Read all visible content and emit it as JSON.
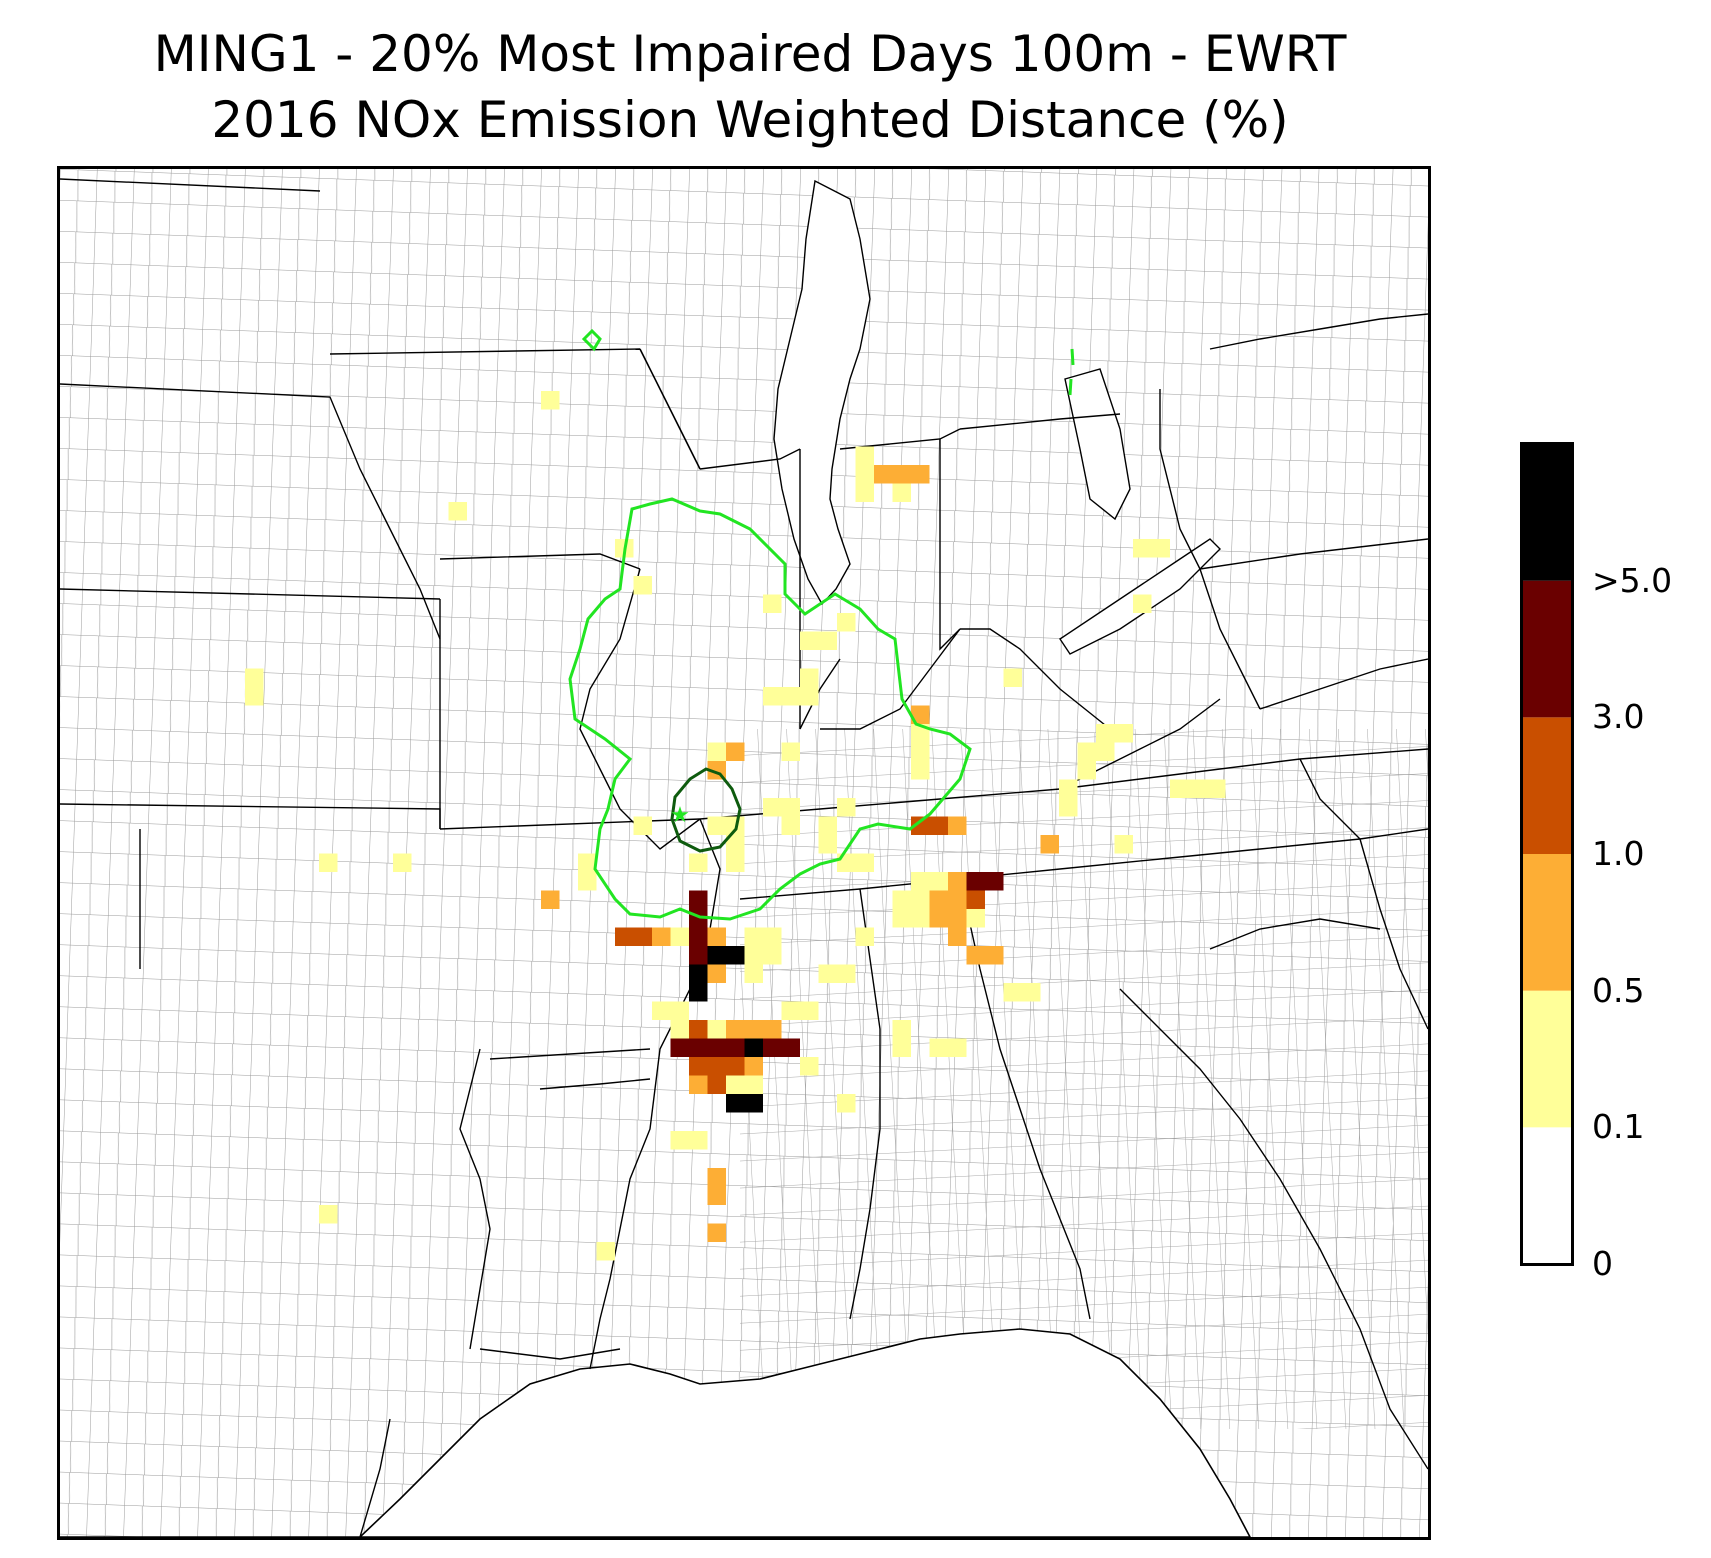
{
  "title": {
    "line1": "MING1 - 20% Most Impaired Days 100m - EWRT",
    "line2": "2016 NOx Emission Weighted Distance (%)"
  },
  "colorbar": {
    "levels": [
      {
        "label": "0",
        "value": 0,
        "color": "#ffffff"
      },
      {
        "label": "0.1",
        "value": 0.1,
        "color": "#ffff99"
      },
      {
        "label": "0.5",
        "value": 0.5,
        "color": "#fdae35"
      },
      {
        "label": "1.0",
        "value": 1.0,
        "color": "#c94f00"
      },
      {
        "label": "3.0",
        "value": 3.0,
        "color": "#6a0000"
      },
      {
        "label": ">5.0",
        "value": 5.0,
        "color": "#000000"
      }
    ]
  },
  "legend_colors": {
    "outer_contour": "#22e522",
    "inner_contour": "#0e5b0e",
    "site_marker": "#22e522",
    "state_border": "#000000",
    "county_border": "#9a9a9a"
  },
  "map_data": {
    "site_marker_icon": "star-icon",
    "cells": [
      {
        "c": 10,
        "r": 27,
        "level": 1
      },
      {
        "c": 10,
        "r": 28,
        "level": 1
      },
      {
        "c": 14,
        "r": 37,
        "level": 1
      },
      {
        "c": 14,
        "r": 56,
        "level": 1
      },
      {
        "c": 18,
        "r": 37,
        "level": 1
      },
      {
        "c": 21,
        "r": 18,
        "level": 1
      },
      {
        "c": 26,
        "r": 12,
        "level": 1
      },
      {
        "c": 26,
        "r": 39,
        "level": 2
      },
      {
        "c": 28,
        "r": 37,
        "level": 1
      },
      {
        "c": 28,
        "r": 38,
        "level": 1
      },
      {
        "c": 29,
        "r": 58,
        "level": 1
      },
      {
        "c": 30,
        "r": 20,
        "level": 1
      },
      {
        "c": 31,
        "r": 22,
        "level": 1
      },
      {
        "c": 31,
        "r": 35,
        "level": 1
      },
      {
        "c": 33,
        "r": 52,
        "level": 1
      },
      {
        "c": 34,
        "r": 52,
        "level": 1
      },
      {
        "c": 35,
        "r": 54,
        "level": 2
      },
      {
        "c": 37,
        "r": 49,
        "level": 1
      },
      {
        "c": 38,
        "r": 23,
        "level": 1
      },
      {
        "c": 39,
        "r": 31,
        "level": 1
      },
      {
        "c": 30,
        "r": 41,
        "level": 3
      },
      {
        "c": 31,
        "r": 41,
        "level": 3
      },
      {
        "c": 32,
        "r": 41,
        "level": 2
      },
      {
        "c": 33,
        "r": 41,
        "level": 1
      },
      {
        "c": 32,
        "r": 45,
        "level": 1
      },
      {
        "c": 33,
        "r": 45,
        "level": 1
      },
      {
        "c": 34,
        "r": 37,
        "level": 1
      },
      {
        "c": 34,
        "r": 39,
        "level": 4
      },
      {
        "c": 34,
        "r": 40,
        "level": 4
      },
      {
        "c": 34,
        "r": 41,
        "level": 4
      },
      {
        "c": 34,
        "r": 42,
        "level": 4
      },
      {
        "c": 34,
        "r": 43,
        "level": 5
      },
      {
        "c": 34,
        "r": 44,
        "level": 5
      },
      {
        "c": 35,
        "r": 42,
        "level": 5
      },
      {
        "c": 36,
        "r": 42,
        "level": 5
      },
      {
        "c": 35,
        "r": 41,
        "level": 2
      },
      {
        "c": 35,
        "r": 43,
        "level": 2
      },
      {
        "c": 34,
        "r": 46,
        "level": 3
      },
      {
        "c": 33,
        "r": 46,
        "level": 1
      },
      {
        "c": 33,
        "r": 47,
        "level": 4
      },
      {
        "c": 34,
        "r": 47,
        "level": 4
      },
      {
        "c": 35,
        "r": 47,
        "level": 4
      },
      {
        "c": 36,
        "r": 47,
        "level": 4
      },
      {
        "c": 37,
        "r": 47,
        "level": 5
      },
      {
        "c": 38,
        "r": 47,
        "level": 4
      },
      {
        "c": 39,
        "r": 47,
        "level": 4
      },
      {
        "c": 34,
        "r": 48,
        "level": 3
      },
      {
        "c": 35,
        "r": 48,
        "level": 3
      },
      {
        "c": 36,
        "r": 48,
        "level": 3
      },
      {
        "c": 37,
        "r": 48,
        "level": 2
      },
      {
        "c": 34,
        "r": 49,
        "level": 2
      },
      {
        "c": 35,
        "r": 49,
        "level": 3
      },
      {
        "c": 36,
        "r": 49,
        "level": 1
      },
      {
        "c": 36,
        "r": 50,
        "level": 5
      },
      {
        "c": 37,
        "r": 50,
        "level": 5
      },
      {
        "c": 35,
        "r": 46,
        "level": 1
      },
      {
        "c": 36,
        "r": 46,
        "level": 2
      },
      {
        "c": 37,
        "r": 46,
        "level": 2
      },
      {
        "c": 38,
        "r": 46,
        "level": 2
      },
      {
        "c": 35,
        "r": 55,
        "level": 2
      },
      {
        "c": 35,
        "r": 57,
        "level": 2
      },
      {
        "c": 35,
        "r": 32,
        "level": 2
      },
      {
        "c": 35,
        "r": 31,
        "level": 1
      },
      {
        "c": 36,
        "r": 31,
        "level": 2
      },
      {
        "c": 36,
        "r": 36,
        "level": 1
      },
      {
        "c": 36,
        "r": 37,
        "level": 1
      },
      {
        "c": 35,
        "r": 35,
        "level": 1
      },
      {
        "c": 36,
        "r": 35,
        "level": 1
      },
      {
        "c": 37,
        "r": 41,
        "level": 1
      },
      {
        "c": 37,
        "r": 42,
        "level": 1
      },
      {
        "c": 37,
        "r": 43,
        "level": 1
      },
      {
        "c": 38,
        "r": 41,
        "level": 1
      },
      {
        "c": 38,
        "r": 42,
        "level": 1
      },
      {
        "c": 38,
        "r": 28,
        "level": 1
      },
      {
        "c": 39,
        "r": 28,
        "level": 1
      },
      {
        "c": 38,
        "r": 34,
        "level": 1
      },
      {
        "c": 39,
        "r": 34,
        "level": 1
      },
      {
        "c": 39,
        "r": 35,
        "level": 1
      },
      {
        "c": 39,
        "r": 45,
        "level": 1
      },
      {
        "c": 40,
        "r": 45,
        "level": 1
      },
      {
        "c": 40,
        "r": 48,
        "level": 1
      },
      {
        "c": 40,
        "r": 25,
        "level": 1
      },
      {
        "c": 41,
        "r": 25,
        "level": 1
      },
      {
        "c": 40,
        "r": 27,
        "level": 1
      },
      {
        "c": 40,
        "r": 28,
        "level": 1
      },
      {
        "c": 41,
        "r": 35,
        "level": 1
      },
      {
        "c": 41,
        "r": 36,
        "level": 1
      },
      {
        "c": 42,
        "r": 34,
        "level": 1
      },
      {
        "c": 42,
        "r": 37,
        "level": 1
      },
      {
        "c": 43,
        "r": 37,
        "level": 1
      },
      {
        "c": 42,
        "r": 50,
        "level": 1
      },
      {
        "c": 41,
        "r": 43,
        "level": 1
      },
      {
        "c": 42,
        "r": 43,
        "level": 1
      },
      {
        "c": 43,
        "r": 41,
        "level": 1
      },
      {
        "c": 42,
        "r": 24,
        "level": 1
      },
      {
        "c": 43,
        "r": 15,
        "level": 1
      },
      {
        "c": 43,
        "r": 16,
        "level": 1
      },
      {
        "c": 43,
        "r": 17,
        "level": 1
      },
      {
        "c": 44,
        "r": 16,
        "level": 2
      },
      {
        "c": 45,
        "r": 16,
        "level": 2
      },
      {
        "c": 46,
        "r": 16,
        "level": 2
      },
      {
        "c": 45,
        "r": 17,
        "level": 1
      },
      {
        "c": 46,
        "r": 29,
        "level": 2
      },
      {
        "c": 46,
        "r": 30,
        "level": 1
      },
      {
        "c": 46,
        "r": 31,
        "level": 1
      },
      {
        "c": 46,
        "r": 32,
        "level": 1
      },
      {
        "c": 46,
        "r": 35,
        "level": 3
      },
      {
        "c": 47,
        "r": 35,
        "level": 3
      },
      {
        "c": 48,
        "r": 35,
        "level": 2
      },
      {
        "c": 46,
        "r": 39,
        "level": 1
      },
      {
        "c": 47,
        "r": 39,
        "level": 2
      },
      {
        "c": 48,
        "r": 39,
        "level": 2
      },
      {
        "c": 46,
        "r": 40,
        "level": 1
      },
      {
        "c": 47,
        "r": 40,
        "level": 2
      },
      {
        "c": 48,
        "r": 40,
        "level": 2
      },
      {
        "c": 49,
        "r": 39,
        "level": 3
      },
      {
        "c": 49,
        "r": 38,
        "level": 4
      },
      {
        "c": 50,
        "r": 38,
        "level": 4
      },
      {
        "c": 49,
        "r": 40,
        "level": 1
      },
      {
        "c": 48,
        "r": 41,
        "level": 2
      },
      {
        "c": 49,
        "r": 42,
        "level": 2
      },
      {
        "c": 46,
        "r": 38,
        "level": 1
      },
      {
        "c": 47,
        "r": 38,
        "level": 1
      },
      {
        "c": 48,
        "r": 38,
        "level": 2
      },
      {
        "c": 45,
        "r": 39,
        "level": 1
      },
      {
        "c": 45,
        "r": 40,
        "level": 1
      },
      {
        "c": 45,
        "r": 46,
        "level": 1
      },
      {
        "c": 45,
        "r": 47,
        "level": 1
      },
      {
        "c": 47,
        "r": 47,
        "level": 1
      },
      {
        "c": 48,
        "r": 47,
        "level": 1
      },
      {
        "c": 51,
        "r": 44,
        "level": 1
      },
      {
        "c": 50,
        "r": 42,
        "level": 2
      },
      {
        "c": 51,
        "r": 27,
        "level": 1
      },
      {
        "c": 52,
        "r": 44,
        "level": 1
      },
      {
        "c": 53,
        "r": 36,
        "level": 2
      },
      {
        "c": 54,
        "r": 33,
        "level": 1
      },
      {
        "c": 54,
        "r": 34,
        "level": 1
      },
      {
        "c": 55,
        "r": 31,
        "level": 1
      },
      {
        "c": 56,
        "r": 31,
        "level": 1
      },
      {
        "c": 55,
        "r": 32,
        "level": 1
      },
      {
        "c": 56,
        "r": 30,
        "level": 1
      },
      {
        "c": 57,
        "r": 30,
        "level": 1
      },
      {
        "c": 57,
        "r": 36,
        "level": 1
      },
      {
        "c": 58,
        "r": 20,
        "level": 1
      },
      {
        "c": 59,
        "r": 20,
        "level": 1
      },
      {
        "c": 58,
        "r": 23,
        "level": 1
      },
      {
        "c": 60,
        "r": 33,
        "level": 1
      },
      {
        "c": 61,
        "r": 33,
        "level": 1
      },
      {
        "c": 62,
        "r": 33,
        "level": 1
      }
    ]
  }
}
